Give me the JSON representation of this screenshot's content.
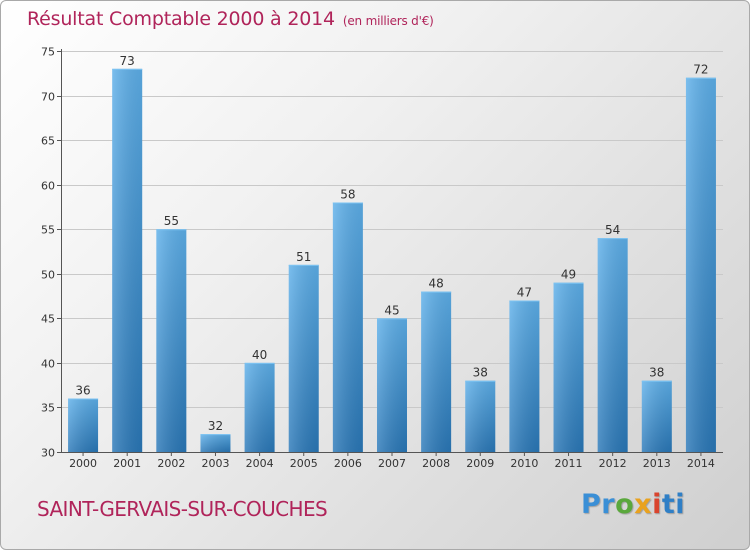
{
  "title": "Résultat Comptable 2000 à 2014",
  "unit": "(en milliers d'€)",
  "city": "SAINT-GERVAIS-SUR-COUCHES",
  "logo": {
    "p1": "Pr",
    "p2": "o",
    "p3": "x",
    "p4": "i",
    "p5": "ti"
  },
  "colors": {
    "title": "#b0245a",
    "bar_light": "#5eb0ea",
    "bar_dark": "#2a78b8",
    "grid": "#c9c9c9"
  },
  "chart_data": {
    "type": "bar",
    "title": "Résultat Comptable 2000 à 2014",
    "xlabel": "",
    "ylabel": "",
    "ylim": [
      30,
      75
    ],
    "yticks": [
      30,
      35,
      40,
      45,
      50,
      55,
      60,
      65,
      70,
      75
    ],
    "grid": true,
    "categories": [
      "2000",
      "2001",
      "2002",
      "2003",
      "2004",
      "2005",
      "2006",
      "2007",
      "2008",
      "2009",
      "2010",
      "2011",
      "2012",
      "2013",
      "2014"
    ],
    "values": [
      36,
      73,
      55,
      32,
      40,
      51,
      58,
      45,
      48,
      38,
      47,
      49,
      54,
      38,
      72
    ]
  }
}
